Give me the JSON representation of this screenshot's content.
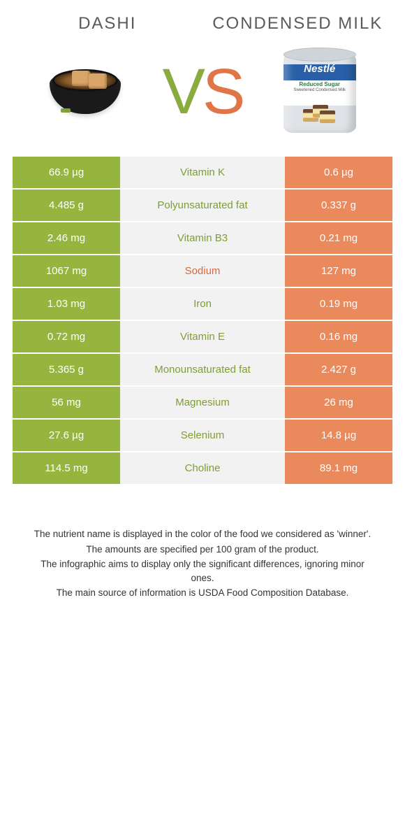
{
  "colors": {
    "left_bg": "#96b53e",
    "right_bg": "#ea8a5c",
    "mid_bg": "#f2f2f2",
    "label_green": "#7e9e34",
    "label_orange": "#d46a3d"
  },
  "header": {
    "left_title": "DASHI",
    "right_title": "CONDENSED MILK",
    "vs_v": "V",
    "vs_s": "S"
  },
  "can": {
    "brand": "Nestlé",
    "line1": "Reduced Sugar",
    "line2": "Sweetened Condensed Milk"
  },
  "rows": [
    {
      "left": "66.9 µg",
      "label": "Vitamin K",
      "right": "0.6 µg",
      "winner": "left"
    },
    {
      "left": "4.485 g",
      "label": "Polyunsaturated fat",
      "right": "0.337 g",
      "winner": "left"
    },
    {
      "left": "2.46 mg",
      "label": "Vitamin B3",
      "right": "0.21 mg",
      "winner": "left"
    },
    {
      "left": "1067 mg",
      "label": "Sodium",
      "right": "127 mg",
      "winner": "right"
    },
    {
      "left": "1.03 mg",
      "label": "Iron",
      "right": "0.19 mg",
      "winner": "left"
    },
    {
      "left": "0.72 mg",
      "label": "Vitamin E",
      "right": "0.16 mg",
      "winner": "left"
    },
    {
      "left": "5.365 g",
      "label": "Monounsaturated fat",
      "right": "2.427 g",
      "winner": "left"
    },
    {
      "left": "56 mg",
      "label": "Magnesium",
      "right": "26 mg",
      "winner": "left"
    },
    {
      "left": "27.6 µg",
      "label": "Selenium",
      "right": "14.8 µg",
      "winner": "left"
    },
    {
      "left": "114.5 mg",
      "label": "Choline",
      "right": "89.1 mg",
      "winner": "left"
    }
  ],
  "footer": {
    "l1": "The nutrient name is displayed in the color of the food we considered as 'winner'.",
    "l2": "The amounts are specified per 100 gram of the product.",
    "l3": "The infographic aims to display only the significant differences, ignoring minor ones.",
    "l4": "The main source of information is USDA Food Composition Database."
  }
}
